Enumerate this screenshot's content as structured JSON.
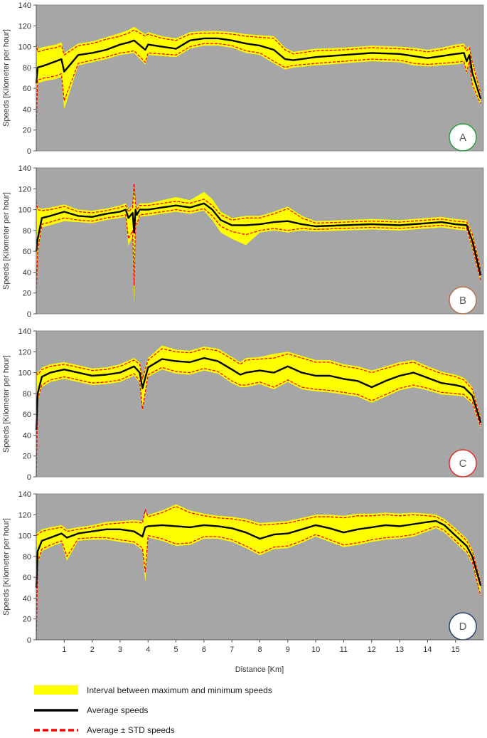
{
  "chart_data": {
    "type": "area",
    "x_axis": {
      "label": "Distance [Km]",
      "range": [
        0,
        16
      ],
      "ticks": [
        "1",
        "2",
        "3",
        "4",
        "5",
        "6",
        "7",
        "8",
        "9",
        "10",
        "11",
        "12",
        "13",
        "14",
        "15"
      ]
    },
    "y_axis": {
      "label": "Speeds [Kilometer per hour]",
      "range": [
        0,
        140
      ],
      "ticks": [
        "0",
        "20",
        "40",
        "60",
        "80",
        "100",
        "120",
        "140"
      ]
    },
    "grid": false,
    "background_color": "#a6a6a6",
    "colors": {
      "band": "#ffff00",
      "average": "#000000",
      "std": "#ff0000"
    },
    "legend": {
      "placement": "bottom",
      "items": [
        {
          "key": "band",
          "label": "Interval between maximum and minimum  speeds"
        },
        {
          "key": "average",
          "label": "Average speeds"
        },
        {
          "key": "std",
          "label": "Average ± STD speeds"
        }
      ]
    },
    "panels": [
      {
        "label": "A",
        "badge_color": "#2e9d3b",
        "x": [
          0,
          0.05,
          0.3,
          0.7,
          0.9,
          1.0,
          1.5,
          2,
          2.5,
          3,
          3.3,
          3.5,
          3.9,
          4,
          4.5,
          5,
          5.5,
          6,
          6.5,
          7,
          7.5,
          8,
          8.5,
          8.9,
          9.2,
          10,
          11,
          12,
          13,
          13.5,
          14,
          14.5,
          15,
          15.3,
          15.4,
          15.5,
          15.6,
          15.9
        ],
        "average": [
          65,
          80,
          82,
          86,
          88,
          76,
          92,
          94,
          97,
          102,
          104,
          106,
          97,
          102,
          100,
          98,
          106,
          108,
          108,
          106,
          103,
          101,
          97,
          88,
          87,
          90,
          92,
          94,
          93,
          91,
          89,
          91,
          93,
          94,
          86,
          92,
          75,
          50
        ],
        "upper": [
          103,
          95,
          97,
          99,
          101,
          92,
          101,
          103,
          107,
          110,
          113,
          116,
          110,
          112,
          108,
          106,
          112,
          113,
          113,
          112,
          110,
          109,
          108,
          97,
          93,
          96,
          97,
          99,
          98,
          97,
          95,
          97,
          100,
          101,
          96,
          99,
          85,
          55
        ],
        "lower": [
          28,
          68,
          70,
          72,
          74,
          48,
          84,
          87,
          90,
          94,
          95,
          96,
          85,
          94,
          93,
          92,
          100,
          103,
          103,
          101,
          96,
          94,
          86,
          80,
          82,
          84,
          86,
          88,
          87,
          84,
          83,
          84,
          85,
          86,
          76,
          86,
          64,
          45
        ],
        "max": [
          106,
          98,
          100,
          102,
          104,
          94,
          103,
          105,
          109,
          113,
          116,
          119,
          112,
          114,
          110,
          108,
          114,
          115,
          115,
          114,
          112,
          111,
          110,
          99,
          95,
          98,
          99,
          101,
          100,
          99,
          97,
          99,
          102,
          103,
          98,
          101,
          87,
          57
        ],
        "min": [
          24,
          65,
          67,
          69,
          71,
          40,
          82,
          85,
          88,
          92,
          93,
          94,
          83,
          92,
          91,
          90,
          98,
          101,
          101,
          99,
          94,
          92,
          84,
          78,
          80,
          82,
          84,
          86,
          85,
          82,
          81,
          82,
          83,
          84,
          74,
          84,
          62,
          43
        ]
      },
      {
        "label": "B",
        "badge_color": "#b5734a",
        "x": [
          0,
          0.05,
          0.2,
          0.5,
          1.0,
          1.5,
          2,
          2.5,
          3,
          3.2,
          3.3,
          3.45,
          3.5,
          3.55,
          3.6,
          3.7,
          4,
          4.5,
          5,
          5.5,
          6,
          6.3,
          6.6,
          7,
          7.5,
          8,
          8.5,
          9,
          9.5,
          10,
          11,
          12,
          13,
          14,
          14.5,
          15,
          15.4,
          15.6,
          15.9
        ],
        "average": [
          60,
          72,
          92,
          94,
          98,
          94,
          93,
          96,
          98,
          100,
          92,
          97,
          78,
          100,
          95,
          100,
          100,
          102,
          104,
          102,
          106,
          100,
          90,
          85,
          85,
          86,
          88,
          89,
          86,
          84,
          85,
          86,
          85,
          87,
          88,
          86,
          85,
          70,
          37
        ],
        "upper": [
          108,
          100,
          99,
          100,
          103,
          98,
          97,
          99,
          102,
          104,
          98,
          102,
          125,
          104,
          100,
          104,
          104,
          106,
          108,
          106,
          110,
          104,
          95,
          90,
          92,
          92,
          96,
          101,
          92,
          87,
          88,
          89,
          88,
          90,
          91,
          89,
          88,
          76,
          42
        ],
        "lower": [
          20,
          60,
          86,
          88,
          92,
          90,
          89,
          92,
          94,
          95,
          72,
          80,
          27,
          90,
          86,
          95,
          96,
          98,
          100,
          98,
          101,
          94,
          84,
          79,
          76,
          80,
          82,
          80,
          82,
          81,
          82,
          83,
          82,
          84,
          85,
          83,
          82,
          64,
          32
        ],
        "max": [
          110,
          102,
          101,
          102,
          105,
          100,
          99,
          101,
          104,
          106,
          100,
          104,
          122,
          106,
          102,
          106,
          106,
          109,
          112,
          109,
          117,
          110,
          98,
          92,
          94,
          94,
          98,
          103,
          94,
          89,
          90,
          91,
          90,
          92,
          93,
          91,
          90,
          78,
          44
        ],
        "min": [
          5,
          57,
          83,
          85,
          89,
          88,
          87,
          90,
          92,
          93,
          65,
          75,
          8,
          88,
          84,
          93,
          94,
          96,
          98,
          96,
          99,
          90,
          78,
          72,
          66,
          78,
          80,
          78,
          80,
          79,
          80,
          81,
          80,
          82,
          83,
          81,
          80,
          62,
          30
        ]
      },
      {
        "label": "C",
        "badge_color": "#e0302a",
        "x": [
          0,
          0.05,
          0.2,
          0.5,
          1.0,
          1.5,
          2,
          2.5,
          3,
          3.5,
          3.7,
          3.8,
          4,
          4.5,
          5,
          5.5,
          6,
          6.5,
          7,
          7.3,
          7.5,
          8,
          8.5,
          9,
          9.5,
          10,
          10.5,
          11,
          11.5,
          12,
          12.5,
          13,
          13.5,
          14,
          14.5,
          15,
          15.3,
          15.6,
          15.9
        ],
        "average": [
          45,
          80,
          96,
          100,
          103,
          100,
          97,
          98,
          100,
          106,
          100,
          85,
          105,
          113,
          111,
          110,
          114,
          111,
          103,
          98,
          100,
          102,
          100,
          106,
          100,
          97,
          97,
          94,
          92,
          86,
          92,
          97,
          100,
          95,
          90,
          88,
          86,
          78,
          52
        ],
        "upper": [
          100,
          98,
          103,
          106,
          108,
          105,
          102,
          103,
          106,
          112,
          108,
          94,
          112,
          123,
          120,
          119,
          123,
          121,
          113,
          108,
          112,
          113,
          114,
          118,
          114,
          110,
          110,
          106,
          104,
          100,
          104,
          108,
          110,
          104,
          99,
          96,
          93,
          84,
          55
        ],
        "lower": [
          0,
          75,
          88,
          93,
          96,
          93,
          90,
          91,
          93,
          99,
          92,
          65,
          98,
          105,
          101,
          100,
          104,
          101,
          92,
          88,
          88,
          91,
          86,
          93,
          86,
          84,
          83,
          81,
          79,
          73,
          79,
          85,
          88,
          85,
          81,
          80,
          79,
          72,
          48
        ],
        "max": [
          102,
          100,
          105,
          108,
          110,
          107,
          104,
          105,
          108,
          114,
          110,
          96,
          114,
          126,
          122,
          121,
          125,
          123,
          115,
          110,
          114,
          115,
          118,
          120,
          116,
          112,
          112,
          108,
          106,
          102,
          106,
          110,
          112,
          106,
          101,
          98,
          95,
          86,
          57
        ],
        "min": [
          0,
          73,
          86,
          91,
          94,
          91,
          88,
          89,
          91,
          97,
          90,
          63,
          96,
          103,
          99,
          98,
          102,
          99,
          90,
          86,
          86,
          89,
          84,
          91,
          84,
          82,
          81,
          79,
          77,
          71,
          77,
          83,
          86,
          83,
          79,
          78,
          77,
          70,
          46
        ]
      },
      {
        "label": "D",
        "badge_color": "#2a4470",
        "x": [
          0,
          0.05,
          0.2,
          0.5,
          0.9,
          1.1,
          1.5,
          2,
          2.5,
          3,
          3.5,
          3.8,
          3.9,
          4,
          4.5,
          5,
          5.5,
          6,
          6.5,
          7,
          7.5,
          8,
          8.5,
          9,
          9.5,
          10,
          10.5,
          11,
          11.5,
          12,
          12.5,
          13,
          13.5,
          14,
          14.3,
          14.6,
          15,
          15.4,
          15.6,
          15.9
        ],
        "average": [
          50,
          85,
          95,
          98,
          102,
          98,
          102,
          104,
          106,
          106,
          104,
          99,
          108,
          109,
          110,
          109,
          108,
          110,
          109,
          107,
          103,
          97,
          101,
          102,
          106,
          110,
          107,
          103,
          106,
          108,
          110,
          109,
          111,
          113,
          114,
          110,
          100,
          90,
          80,
          52
        ],
        "upper": [
          100,
          101,
          104,
          106,
          108,
          104,
          106,
          108,
          111,
          112,
          113,
          112,
          125,
          118,
          122,
          128,
          122,
          119,
          117,
          116,
          114,
          110,
          111,
          112,
          115,
          118,
          118,
          117,
          119,
          119,
          120,
          119,
          120,
          119,
          118,
          114,
          105,
          95,
          85,
          55
        ],
        "lower": [
          0,
          75,
          87,
          91,
          95,
          80,
          97,
          98,
          98,
          96,
          94,
          88,
          65,
          100,
          97,
          92,
          93,
          99,
          99,
          96,
          90,
          83,
          89,
          90,
          95,
          101,
          96,
          91,
          93,
          96,
          98,
          99,
          101,
          106,
          109,
          105,
          95,
          85,
          75,
          42
        ],
        "max": [
          102,
          103,
          106,
          108,
          110,
          106,
          108,
          110,
          113,
          114,
          115,
          114,
          122,
          120,
          124,
          130,
          124,
          121,
          119,
          118,
          116,
          112,
          113,
          114,
          117,
          120,
          120,
          119,
          121,
          121,
          122,
          121,
          122,
          121,
          120,
          116,
          107,
          97,
          87,
          57
        ],
        "min": [
          0,
          73,
          85,
          89,
          93,
          76,
          95,
          96,
          96,
          94,
          92,
          86,
          55,
          98,
          95,
          90,
          91,
          97,
          97,
          94,
          88,
          81,
          87,
          88,
          93,
          99,
          94,
          89,
          91,
          94,
          96,
          97,
          99,
          104,
          107,
          103,
          93,
          83,
          73,
          40
        ]
      }
    ]
  }
}
